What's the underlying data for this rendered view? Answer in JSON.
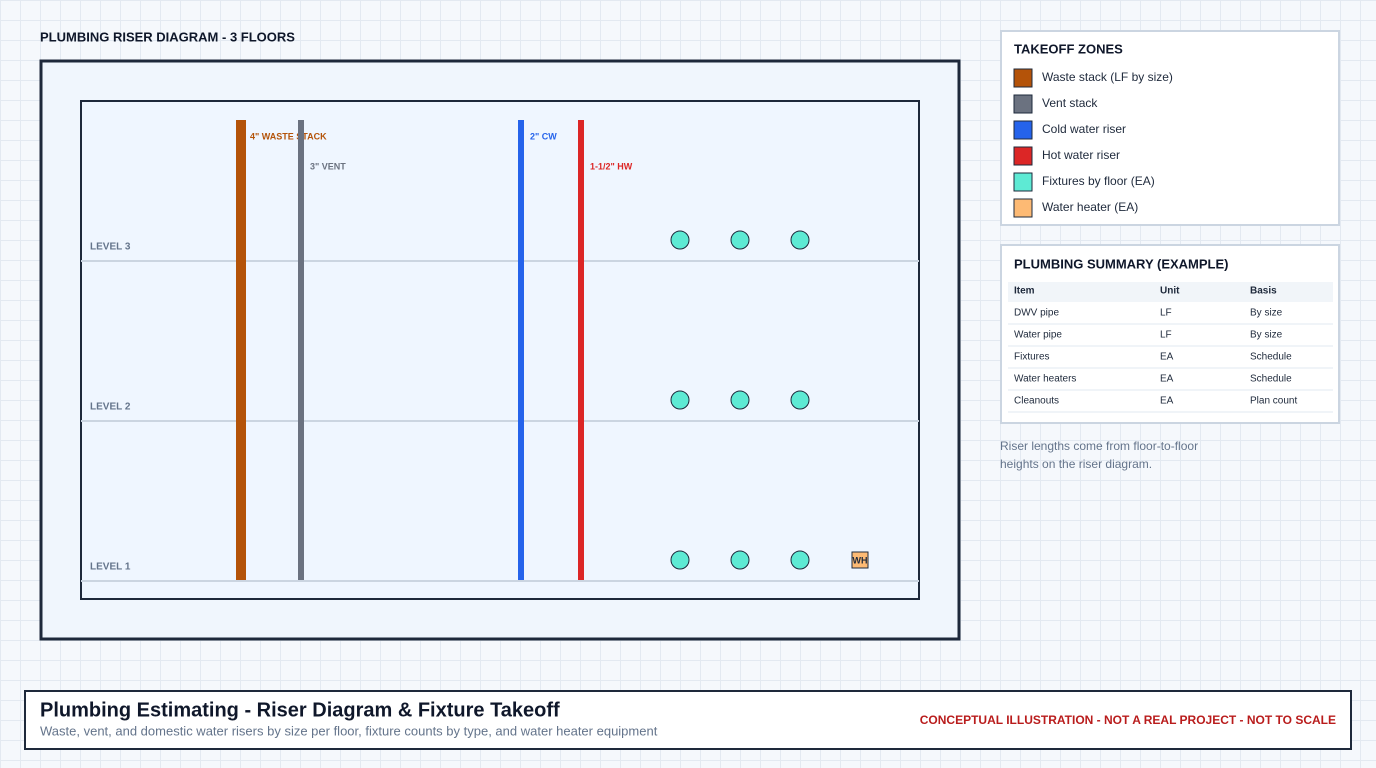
{
  "diagram": {
    "title": "PLUMBING RISER DIAGRAM - 3 FLOORS",
    "levels": [
      "LEVEL 3",
      "LEVEL 2",
      "LEVEL 1"
    ],
    "stacks": [
      "4\" WASTE STACK",
      "3\" VENT",
      "2\" CW",
      "1-1/2\" HW"
    ],
    "water_heater": "WH"
  },
  "legend": {
    "title": "TAKEOFF ZONES",
    "items": [
      "Waste stack (LF by size)",
      "Vent stack",
      "Cold water riser",
      "Hot water riser",
      "Fixtures by floor (EA)",
      "Water heater (EA)"
    ]
  },
  "summary": {
    "title": "PLUMBING SUMMARY (EXAMPLE)",
    "columns": [
      "Item",
      "Unit",
      "Basis"
    ],
    "rows": [
      [
        "DWV pipe",
        "LF",
        "By size"
      ],
      [
        "Water pipe",
        "LF",
        "By size"
      ],
      [
        "Fixtures",
        "EA",
        "Schedule"
      ],
      [
        "Water heaters",
        "EA",
        "Schedule"
      ],
      [
        "Cleanouts",
        "EA",
        "Plan count"
      ]
    ]
  },
  "note": [
    "Riser lengths come from floor-to-floor",
    "heights on the riser diagram."
  ],
  "footer": {
    "title": "Plumbing Estimating - Riser Diagram & Fixture Takeoff",
    "subtitle": "Waste, vent, and domestic water risers by size per floor, fixture counts by type, and water heater equipment",
    "disclaimer": "CONCEPTUAL ILLUSTRATION - NOT A REAL PROJECT - NOT TO SCALE"
  }
}
